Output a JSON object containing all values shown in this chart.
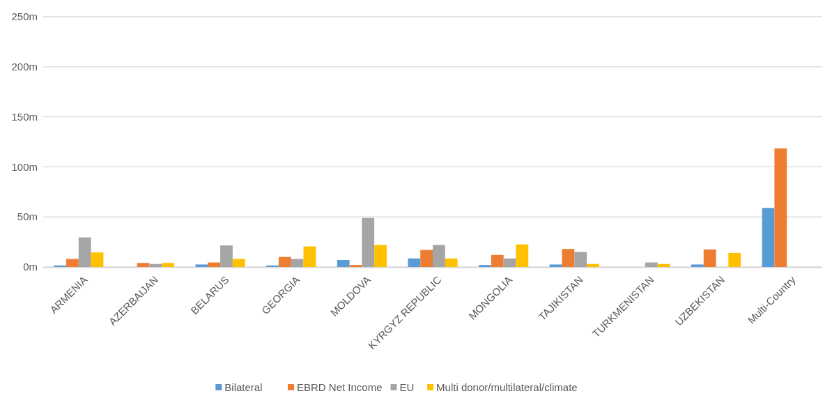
{
  "chart_data": {
    "type": "bar",
    "categories": [
      "ARMENIA",
      "AZERBAIJAN",
      "BELARUS",
      "GEORGIA",
      "MOLDOVA",
      "KYRGYZ REPUBLIC",
      "MONGOLIA",
      "TAJIKISTAN",
      "TURKMENISTAN",
      "UZBEKISTAN",
      "Multi-Country"
    ],
    "series": [
      {
        "name": "Bilateral",
        "color": "#5b9bd5",
        "values": [
          1.5,
          0,
          2.5,
          1.5,
          7,
          8.5,
          2,
          2.5,
          0,
          2.5,
          59
        ]
      },
      {
        "name": "EBRD Net Income",
        "color": "#ed7d31",
        "values": [
          8,
          4,
          4.5,
          10,
          2,
          17,
          12,
          18,
          0,
          17.5,
          118.5
        ]
      },
      {
        "name": "EU",
        "color": "#a5a5a5",
        "values": [
          29.5,
          3,
          21.5,
          8,
          49,
          22,
          8.5,
          15,
          4.5,
          0,
          null
        ]
      },
      {
        "name": "Multi donor/multilateral/climate",
        "color": "#ffc000",
        "values": [
          14.5,
          4,
          8,
          20.5,
          22,
          8.5,
          22.5,
          3,
          3,
          14,
          null
        ]
      }
    ],
    "ylim": [
      0,
      250
    ],
    "yticks": [
      {
        "value": 0,
        "label": "0m"
      },
      {
        "value": 50,
        "label": "50m"
      },
      {
        "value": 100,
        "label": "100m"
      },
      {
        "value": 150,
        "label": "150m"
      },
      {
        "value": 200,
        "label": "200m"
      },
      {
        "value": 250,
        "label": "250m"
      }
    ],
    "grid": "y",
    "legend": "bottom"
  }
}
